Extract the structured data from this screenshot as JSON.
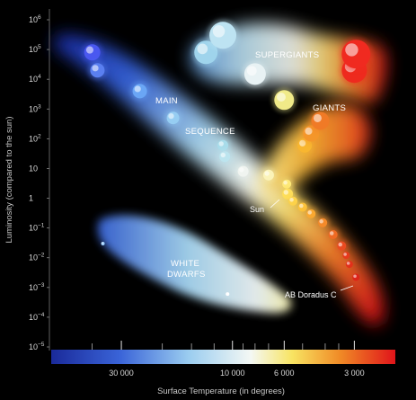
{
  "chart_data": {
    "type": "scatter",
    "title": "",
    "xlabel": "Surface Temperature (in degrees)",
    "ylabel": "Luminosity (compared to the sun)",
    "x_scale": "log-reversed",
    "xlim": [
      60000,
      2000
    ],
    "y_scale": "log",
    "ylim": [
      1e-05,
      1000000.0
    ],
    "grid": false,
    "colors": {
      "background": "#000000",
      "hot": "#2a36c8",
      "cool": "#e81818"
    },
    "x_ticks": [
      {
        "value": 30000,
        "label": "30 000"
      },
      {
        "value": 10000,
        "label": "10 000"
      },
      {
        "value": 6000,
        "label": "6 000"
      },
      {
        "value": 3000,
        "label": "3 000"
      }
    ],
    "y_ticks": [
      {
        "value": 1000000.0,
        "base": "10",
        "exp": "6"
      },
      {
        "value": 100000.0,
        "base": "10",
        "exp": "5"
      },
      {
        "value": 10000.0,
        "base": "10",
        "exp": "4"
      },
      {
        "value": 1000.0,
        "base": "10",
        "exp": "3"
      },
      {
        "value": 100.0,
        "base": "10",
        "exp": "2"
      },
      {
        "value": 10,
        "base": "10",
        "exp": ""
      },
      {
        "value": 1,
        "base": "1",
        "exp": ""
      },
      {
        "value": 0.1,
        "base": "10",
        "exp": "−1"
      },
      {
        "value": 0.01,
        "base": "10",
        "exp": "−2"
      },
      {
        "value": 0.001,
        "base": "10",
        "exp": "−3"
      },
      {
        "value": 0.0001,
        "base": "10",
        "exp": "−4"
      },
      {
        "value": 1e-05,
        "base": "10",
        "exp": "−5"
      }
    ],
    "regions": [
      {
        "name": "main-sequence",
        "lines": [
          "MAIN",
          "SEQUENCE"
        ]
      },
      {
        "name": "supergiants",
        "lines": [
          "SUPERGIANTS"
        ]
      },
      {
        "name": "giants",
        "lines": [
          "GIANTS"
        ]
      },
      {
        "name": "white-dwarfs",
        "lines": [
          "WHITE",
          "DWARFS"
        ]
      }
    ],
    "annotations": [
      {
        "name": "sun",
        "text": "Sun",
        "x": 5800,
        "y": 1
      },
      {
        "name": "ab-doradus-c",
        "text": "AB Doradus C",
        "x": 3000,
        "y": 0.002
      }
    ],
    "stars": [
      {
        "x": 40000,
        "y": 80000,
        "color": "#4a58f0",
        "size": 9
      },
      {
        "x": 38000,
        "y": 20000,
        "color": "#5a7ff0",
        "size": 8
      },
      {
        "x": 25000,
        "y": 4000,
        "color": "#6aa6f5",
        "size": 8
      },
      {
        "x": 18000,
        "y": 500,
        "color": "#96cdf2",
        "size": 7
      },
      {
        "x": 13000,
        "y": 80000,
        "color": "#9fd4ec",
        "size": 13
      },
      {
        "x": 11000,
        "y": 300000,
        "color": "#bde3f2",
        "size": 15
      },
      {
        "x": 8000,
        "y": 15000,
        "color": "#e8f2f4",
        "size": 12
      },
      {
        "x": 6000,
        "y": 2000,
        "color": "#f0ea88",
        "size": 11
      },
      {
        "x": 11000,
        "y": 60,
        "color": "#a8dcea",
        "size": 6
      },
      {
        "x": 10800,
        "y": 25,
        "color": "#bce4ee",
        "size": 6
      },
      {
        "x": 9000,
        "y": 8,
        "color": "#f0f4f0",
        "size": 6
      },
      {
        "x": 7000,
        "y": 6,
        "color": "#fbf3b8",
        "size": 6
      },
      {
        "x": 5850,
        "y": 3,
        "color": "#fde97a",
        "size": 5
      },
      {
        "x": 5800,
        "y": 1.4,
        "color": "#fdde5a",
        "size": 6
      },
      {
        "x": 5500,
        "y": 0.8,
        "color": "#fcd24a",
        "size": 5
      },
      {
        "x": 5000,
        "y": 0.5,
        "color": "#fbc23a",
        "size": 5
      },
      {
        "x": 4600,
        "y": 0.3,
        "color": "#f9a830",
        "size": 5
      },
      {
        "x": 4100,
        "y": 0.15,
        "color": "#f48a2a",
        "size": 5
      },
      {
        "x": 3700,
        "y": 0.06,
        "color": "#ef6a24",
        "size": 5
      },
      {
        "x": 3400,
        "y": 0.025,
        "color": "#ea4a20",
        "size": 5
      },
      {
        "x": 3250,
        "y": 0.012,
        "color": "#e63a1c",
        "size": 4
      },
      {
        "x": 3150,
        "y": 0.006,
        "color": "#e2301a",
        "size": 4
      },
      {
        "x": 2950,
        "y": 0.0022,
        "color": "#dc2418",
        "size": 4
      },
      {
        "x": 4900,
        "y": 60,
        "color": "#f8b630",
        "size": 8
      },
      {
        "x": 4600,
        "y": 150,
        "color": "#f4962a",
        "size": 9
      },
      {
        "x": 4200,
        "y": 400,
        "color": "#f07a26",
        "size": 10
      },
      {
        "x": 3000,
        "y": 20000,
        "color": "#ee2a1e",
        "size": 14
      },
      {
        "x": 2950,
        "y": 70000,
        "color": "#f02a20",
        "size": 16
      },
      {
        "x": 36000,
        "y": 0.03,
        "color": "#9fd0ff",
        "size": 2
      },
      {
        "x": 10500,
        "y": 0.0006,
        "color": "#ffffff",
        "size": 2
      }
    ]
  }
}
